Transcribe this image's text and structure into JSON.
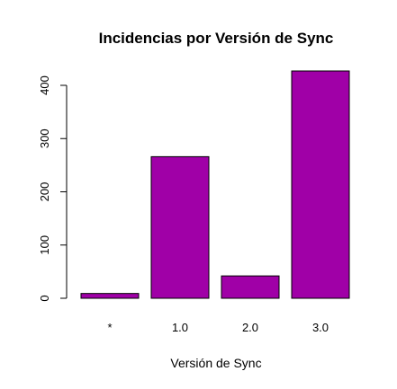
{
  "chart_data": {
    "type": "bar",
    "title": "Incidencias por Versión de Sync",
    "xlabel": "Versión de Sync",
    "ylabel": "",
    "categories": [
      "*",
      "1.0",
      "2.0",
      "3.0"
    ],
    "values": [
      9,
      266,
      42,
      427
    ],
    "ylim": [
      0,
      430
    ],
    "yticks": [
      0,
      100,
      200,
      300,
      400
    ],
    "bar_color": "#a000a7",
    "grid": false,
    "legend": "none"
  }
}
